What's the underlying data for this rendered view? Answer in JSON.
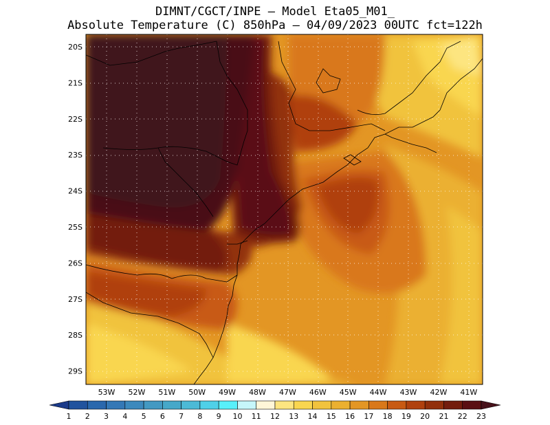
{
  "header": {
    "line1": "DIMNT/CGCT/INPE —  Model Eta05_M01_",
    "line2": "Absolute Temperature (C) 850hPa —  04/09/2023 00UTC fct=122h"
  },
  "map": {
    "lat_labels": [
      "20S",
      "21S",
      "22S",
      "23S",
      "24S",
      "25S",
      "26S",
      "27S",
      "28S",
      "29S"
    ],
    "lon_labels": [
      "53W",
      "52W",
      "51W",
      "50W",
      "49W",
      "48W",
      "47W",
      "46W",
      "45W",
      "44W",
      "43W",
      "42W",
      "41W"
    ],
    "grid": true,
    "grid_style": "dotted"
  },
  "colorbar": {
    "ticks": [
      "1",
      "2",
      "3",
      "4",
      "5",
      "6",
      "7",
      "8",
      "9",
      "10",
      "11",
      "12",
      "13",
      "14",
      "15",
      "16",
      "17",
      "18",
      "19",
      "20",
      "21",
      "22",
      "23"
    ],
    "colors": [
      "#1b3b8a",
      "#21539e",
      "#2a68ad",
      "#3478b6",
      "#3c89bd",
      "#4399c2",
      "#46a8c9",
      "#4cbad6",
      "#4fd0e8",
      "#58f0fa",
      "#c6f6fa",
      "#fff6d8",
      "#fde580",
      "#f9d64f",
      "#f1c33d",
      "#ebb030",
      "#e39624",
      "#d9781a",
      "#c85a13",
      "#b0410e",
      "#92300b",
      "#731d0d",
      "#5a0f12",
      "#47111a"
    ],
    "extends": "both"
  }
}
